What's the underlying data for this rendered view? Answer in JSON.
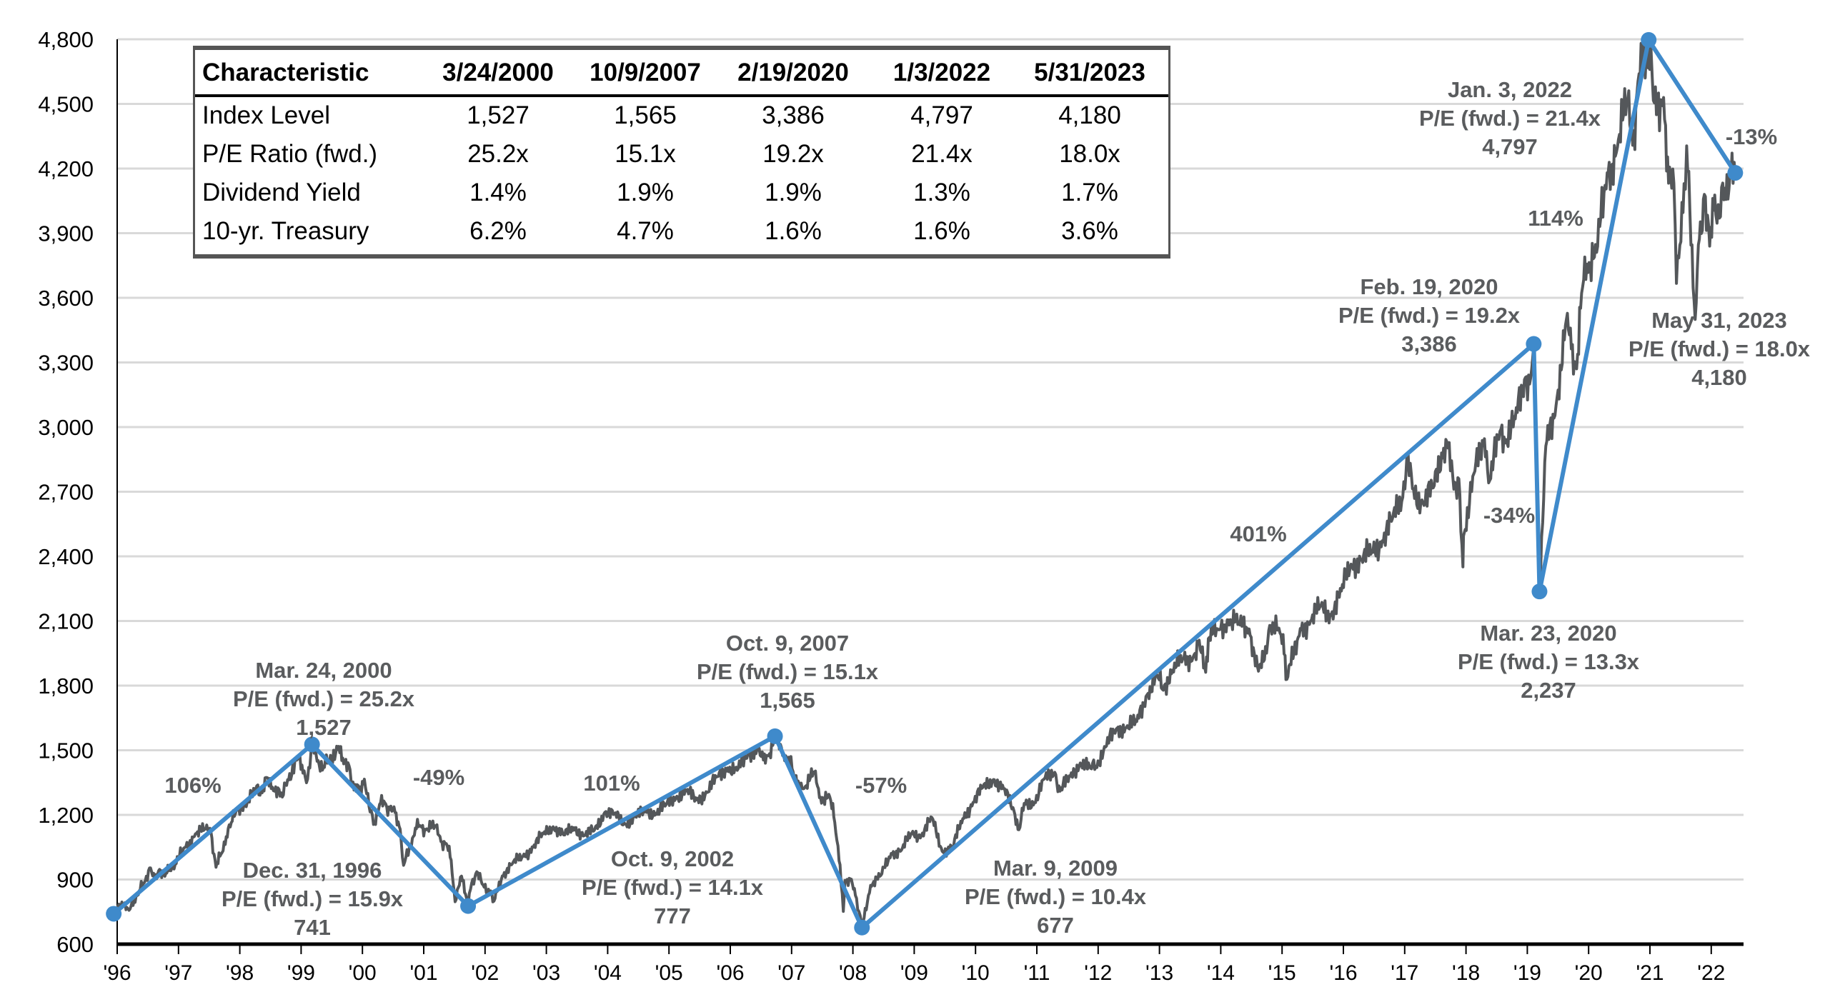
{
  "chart_data": {
    "type": "line",
    "title": "",
    "xlabel": "",
    "ylabel": "",
    "ylim": [
      600,
      4800
    ],
    "yticks": [
      600,
      900,
      1200,
      1500,
      1800,
      2100,
      2400,
      2700,
      3000,
      3300,
      3600,
      3900,
      4200,
      4500,
      4800
    ],
    "ytick_labels": [
      "600",
      "900",
      "1,200",
      "1,500",
      "1,800",
      "2,100",
      "2,400",
      "2,700",
      "3,000",
      "3,300",
      "3,600",
      "3,900",
      "4,200",
      "4,500",
      "4,800"
    ],
    "xtick_labels": [
      "'96",
      "'97",
      "'98",
      "'99",
      "'00",
      "'01",
      "'02",
      "'03",
      "'04",
      "'05",
      "'06",
      "'07",
      "'08",
      "'09",
      "'10",
      "'11",
      "'12",
      "'13",
      "'14",
      "'15",
      "'16",
      "'17",
      "'18",
      "'19",
      "'20",
      "'21",
      "'22"
    ],
    "grid": "horizontal",
    "colors": {
      "index": "#54575a",
      "trend": "#3f8acb",
      "grid": "#d9d9d9",
      "annotation": "#5a5c5e"
    },
    "series": [
      {
        "values": [
          [
            "1996-12-31",
            741
          ],
          [
            "1997-01-31",
            786
          ],
          [
            "1997-03-31",
            757
          ],
          [
            "1997-04-30",
            801
          ],
          [
            "1997-05-31",
            848
          ],
          [
            "1997-06-30",
            885
          ],
          [
            "1997-07-31",
            954
          ],
          [
            "1997-08-31",
            899
          ],
          [
            "1997-09-30",
            947
          ],
          [
            "1997-10-31",
            915
          ],
          [
            "1997-11-30",
            955
          ],
          [
            "1997-12-31",
            970
          ],
          [
            "1998-02-28",
            1049
          ],
          [
            "1998-04-30",
            1112
          ],
          [
            "1998-06-30",
            1134
          ],
          [
            "1998-07-31",
            1121
          ],
          [
            "1998-08-31",
            957
          ],
          [
            "1998-09-30",
            1017
          ],
          [
            "1998-10-31",
            1099
          ],
          [
            "1998-11-30",
            1164
          ],
          [
            "1998-12-31",
            1229
          ],
          [
            "1999-02-28",
            1238
          ],
          [
            "1999-04-30",
            1335
          ],
          [
            "1999-05-31",
            1302
          ],
          [
            "1999-06-30",
            1373
          ],
          [
            "1999-07-31",
            1329
          ],
          [
            "1999-09-30",
            1283
          ],
          [
            "1999-10-31",
            1363
          ],
          [
            "1999-12-31",
            1469
          ],
          [
            "2000-01-31",
            1394
          ],
          [
            "2000-02-28",
            1366
          ],
          [
            "2000-03-24",
            1527
          ],
          [
            "2000-04-30",
            1452
          ],
          [
            "2000-05-31",
            1421
          ],
          [
            "2000-06-30",
            1455
          ],
          [
            "2000-08-31",
            1518
          ],
          [
            "2000-09-30",
            1437
          ],
          [
            "2000-10-31",
            1429
          ],
          [
            "2000-11-30",
            1315
          ],
          [
            "2000-12-31",
            1320
          ],
          [
            "2001-01-31",
            1366
          ],
          [
            "2001-02-28",
            1240
          ],
          [
            "2001-03-31",
            1160
          ],
          [
            "2001-04-30",
            1249
          ],
          [
            "2001-05-31",
            1256
          ],
          [
            "2001-06-30",
            1224
          ],
          [
            "2001-07-31",
            1211
          ],
          [
            "2001-08-31",
            1134
          ],
          [
            "2001-09-21",
            966
          ],
          [
            "2001-10-31",
            1060
          ],
          [
            "2001-11-30",
            1139
          ],
          [
            "2001-12-31",
            1148
          ],
          [
            "2002-01-31",
            1130
          ],
          [
            "2002-03-31",
            1147
          ],
          [
            "2002-04-30",
            1076
          ],
          [
            "2002-05-31",
            1067
          ],
          [
            "2002-06-30",
            990
          ],
          [
            "2002-07-23",
            797
          ],
          [
            "2002-08-31",
            916
          ],
          [
            "2002-09-30",
            815
          ],
          [
            "2002-10-09",
            777
          ],
          [
            "2002-10-31",
            885
          ],
          [
            "2002-11-30",
            936
          ],
          [
            "2002-12-31",
            880
          ],
          [
            "2003-02-28",
            841
          ],
          [
            "2003-03-11",
            800
          ],
          [
            "2003-04-30",
            917
          ],
          [
            "2003-06-30",
            975
          ],
          [
            "2003-08-31",
            1008
          ],
          [
            "2003-10-31",
            1050
          ],
          [
            "2003-12-31",
            1112
          ],
          [
            "2004-02-28",
            1145
          ],
          [
            "2004-04-30",
            1107
          ],
          [
            "2004-06-30",
            1141
          ],
          [
            "2004-08-31",
            1104
          ],
          [
            "2004-10-31",
            1130
          ],
          [
            "2004-12-31",
            1212
          ],
          [
            "2005-02-28",
            1204
          ],
          [
            "2005-04-30",
            1157
          ],
          [
            "2005-06-30",
            1191
          ],
          [
            "2005-08-31",
            1220
          ],
          [
            "2005-10-31",
            1207
          ],
          [
            "2005-12-31",
            1248
          ],
          [
            "2006-02-28",
            1281
          ],
          [
            "2006-04-30",
            1311
          ],
          [
            "2006-06-30",
            1270
          ],
          [
            "2006-08-31",
            1304
          ],
          [
            "2006-10-31",
            1378
          ],
          [
            "2006-12-31",
            1418
          ],
          [
            "2007-02-28",
            1407
          ],
          [
            "2007-04-30",
            1482
          ],
          [
            "2007-06-30",
            1503
          ],
          [
            "2007-07-31",
            1455
          ],
          [
            "2007-08-31",
            1474
          ],
          [
            "2007-10-09",
            1565
          ],
          [
            "2007-11-30",
            1481
          ],
          [
            "2007-12-31",
            1468
          ],
          [
            "2008-01-31",
            1379
          ],
          [
            "2008-03-31",
            1323
          ],
          [
            "2008-05-31",
            1400
          ],
          [
            "2008-06-30",
            1280
          ],
          [
            "2008-08-31",
            1283
          ],
          [
            "2008-09-30",
            1166
          ],
          [
            "2008-10-31",
            969
          ],
          [
            "2008-11-20",
            752
          ],
          [
            "2008-11-30",
            896
          ],
          [
            "2008-12-31",
            903
          ],
          [
            "2009-01-31",
            826
          ],
          [
            "2009-02-28",
            735
          ],
          [
            "2009-03-09",
            677
          ],
          [
            "2009-04-30",
            873
          ],
          [
            "2009-06-30",
            919
          ],
          [
            "2009-08-31",
            1021
          ],
          [
            "2009-10-31",
            1036
          ],
          [
            "2009-12-31",
            1115
          ],
          [
            "2010-02-28",
            1104
          ],
          [
            "2010-04-30",
            1187
          ],
          [
            "2010-06-30",
            1031
          ],
          [
            "2010-08-31",
            1049
          ],
          [
            "2010-10-31",
            1183
          ],
          [
            "2010-12-31",
            1258
          ],
          [
            "2011-02-28",
            1327
          ],
          [
            "2011-04-30",
            1364
          ],
          [
            "2011-06-30",
            1321
          ],
          [
            "2011-08-31",
            1219
          ],
          [
            "2011-09-30",
            1131
          ],
          [
            "2011-10-31",
            1253
          ],
          [
            "2011-12-31",
            1258
          ],
          [
            "2012-02-28",
            1366
          ],
          [
            "2012-04-30",
            1398
          ],
          [
            "2012-05-31",
            1310
          ],
          [
            "2012-07-31",
            1379
          ],
          [
            "2012-09-30",
            1441
          ],
          [
            "2012-11-30",
            1416
          ],
          [
            "2012-12-31",
            1426
          ],
          [
            "2013-02-28",
            1515
          ],
          [
            "2013-04-30",
            1598
          ],
          [
            "2013-06-30",
            1606
          ],
          [
            "2013-08-31",
            1633
          ],
          [
            "2013-10-31",
            1757
          ],
          [
            "2013-12-31",
            1848
          ],
          [
            "2014-01-31",
            1783
          ],
          [
            "2014-03-31",
            1872
          ],
          [
            "2014-05-31",
            1924
          ],
          [
            "2014-07-31",
            1931
          ],
          [
            "2014-08-31",
            2003
          ],
          [
            "2014-10-15",
            1862
          ],
          [
            "2014-10-31",
            2018
          ],
          [
            "2014-12-31",
            2059
          ],
          [
            "2015-02-28",
            2105
          ],
          [
            "2015-04-30",
            2086
          ],
          [
            "2015-06-30",
            2063
          ],
          [
            "2015-08-25",
            1867
          ],
          [
            "2015-09-30",
            1920
          ],
          [
            "2015-10-31",
            2079
          ],
          [
            "2015-12-31",
            2044
          ],
          [
            "2016-01-31",
            1940
          ],
          [
            "2016-02-11",
            1829
          ],
          [
            "2016-04-30",
            2065
          ],
          [
            "2016-06-30",
            2099
          ],
          [
            "2016-08-31",
            2171
          ],
          [
            "2016-10-31",
            2126
          ],
          [
            "2016-12-31",
            2239
          ],
          [
            "2017-02-28",
            2364
          ],
          [
            "2017-04-30",
            2384
          ],
          [
            "2017-06-30",
            2423
          ],
          [
            "2017-08-31",
            2472
          ],
          [
            "2017-10-31",
            2575
          ],
          [
            "2017-12-31",
            2674
          ],
          [
            "2018-01-26",
            2873
          ],
          [
            "2018-02-28",
            2714
          ],
          [
            "2018-04-30",
            2648
          ],
          [
            "2018-06-30",
            2718
          ],
          [
            "2018-08-31",
            2902
          ],
          [
            "2018-09-20",
            2931
          ],
          [
            "2018-10-31",
            2712
          ],
          [
            "2018-11-30",
            2760
          ],
          [
            "2018-12-24",
            2351
          ],
          [
            "2018-12-31",
            2507
          ],
          [
            "2019-02-28",
            2784
          ],
          [
            "2019-04-30",
            2946
          ],
          [
            "2019-05-31",
            2752
          ],
          [
            "2019-07-31",
            2980
          ],
          [
            "2019-08-31",
            2926
          ],
          [
            "2019-10-31",
            3038
          ],
          [
            "2019-12-31",
            3231
          ],
          [
            "2020-01-31",
            3226
          ],
          [
            "2020-02-19",
            3386
          ],
          [
            "2020-03-23",
            2237
          ],
          [
            "2020-04-30",
            2912
          ],
          [
            "2020-06-30",
            3100
          ],
          [
            "2020-08-31",
            3500
          ],
          [
            "2020-09-30",
            3363
          ],
          [
            "2020-10-31",
            3270
          ],
          [
            "2020-11-30",
            3622
          ],
          [
            "2020-12-31",
            3756
          ],
          [
            "2021-02-28",
            3811
          ],
          [
            "2021-04-30",
            4181
          ],
          [
            "2021-06-30",
            4298
          ],
          [
            "2021-08-31",
            4523
          ],
          [
            "2021-09-30",
            4308
          ],
          [
            "2021-10-31",
            4605
          ],
          [
            "2021-12-31",
            4766
          ],
          [
            "2022-01-03",
            4797
          ],
          [
            "2022-01-31",
            4516
          ],
          [
            "2022-03-31",
            4530
          ],
          [
            "2022-04-30",
            4132
          ],
          [
            "2022-05-31",
            4132
          ],
          [
            "2022-06-16",
            3667
          ],
          [
            "2022-06-30",
            3785
          ],
          [
            "2022-07-31",
            4130
          ],
          [
            "2022-08-16",
            4305
          ],
          [
            "2022-09-30",
            3586
          ],
          [
            "2022-10-12",
            3577
          ],
          [
            "2022-10-31",
            3872
          ],
          [
            "2022-11-30",
            4080
          ],
          [
            "2022-12-31",
            3840
          ],
          [
            "2023-01-31",
            4077
          ],
          [
            "2023-02-28",
            3970
          ],
          [
            "2023-03-31",
            4109
          ],
          [
            "2023-04-30",
            4169
          ],
          [
            "2023-05-31",
            4180
          ]
        ]
      },
      {
        "values": [
          [
            "1996-12-31",
            741
          ],
          [
            "2000-03-24",
            1527
          ],
          [
            "2002-10-09",
            777
          ],
          [
            "2007-10-09",
            1565
          ],
          [
            "2009-03-09",
            677
          ],
          [
            "2020-02-19",
            3386
          ],
          [
            "2020-03-23",
            2237
          ],
          [
            "2022-01-03",
            4797
          ],
          [
            "2023-05-31",
            4180
          ]
        ]
      }
    ],
    "annotations": [
      {
        "lines": [
          "106%"
        ]
      },
      {
        "lines": [
          "Mar. 24, 2000",
          "P/E (fwd.) = 25.2x",
          "1,527"
        ]
      },
      {
        "lines": [
          "-49%"
        ]
      },
      {
        "lines": [
          "Dec. 31, 1996",
          "P/E (fwd.) = 15.9x",
          "741"
        ]
      },
      {
        "lines": [
          "101%"
        ]
      },
      {
        "lines": [
          "Oct. 9, 2002",
          "P/E (fwd.) = 14.1x",
          "777"
        ]
      },
      {
        "lines": [
          "Oct. 9, 2007",
          "P/E (fwd.) = 15.1x",
          "1,565"
        ]
      },
      {
        "lines": [
          "-57%"
        ]
      },
      {
        "lines": [
          "Mar. 9, 2009",
          "P/E (fwd.) = 10.4x",
          "677"
        ]
      },
      {
        "lines": [
          "401%"
        ]
      },
      {
        "lines": [
          "Feb. 19, 2020",
          "P/E (fwd.) = 19.2x",
          "3,386"
        ]
      },
      {
        "lines": [
          "-34%"
        ]
      },
      {
        "lines": [
          "Mar. 23, 2020",
          "P/E (fwd.) = 13.3x",
          "2,237"
        ]
      },
      {
        "lines": [
          "114%"
        ]
      },
      {
        "lines": [
          "Jan. 3, 2022",
          "P/E (fwd.) = 21.4x",
          "4,797"
        ]
      },
      {
        "lines": [
          "-13%"
        ]
      },
      {
        "lines": [
          "May 31, 2023",
          "P/E (fwd.) = 18.0x",
          "4,180"
        ]
      }
    ]
  },
  "table": {
    "header": [
      "Characteristic",
      "3/24/2000",
      "10/9/2007",
      "2/19/2020",
      "1/3/2022",
      "5/31/2023"
    ],
    "rows": [
      [
        "Index Level",
        "1,527",
        "1,565",
        "3,386",
        "4,797",
        "4,180"
      ],
      [
        "P/E Ratio (fwd.)",
        "25.2x",
        "15.1x",
        "19.2x",
        "21.4x",
        "18.0x"
      ],
      [
        "Dividend Yield",
        "1.4%",
        "1.9%",
        "1.9%",
        "1.3%",
        "1.7%"
      ],
      [
        "10-yr. Treasury",
        "6.2%",
        "4.7%",
        "1.6%",
        "1.6%",
        "3.6%"
      ]
    ]
  }
}
